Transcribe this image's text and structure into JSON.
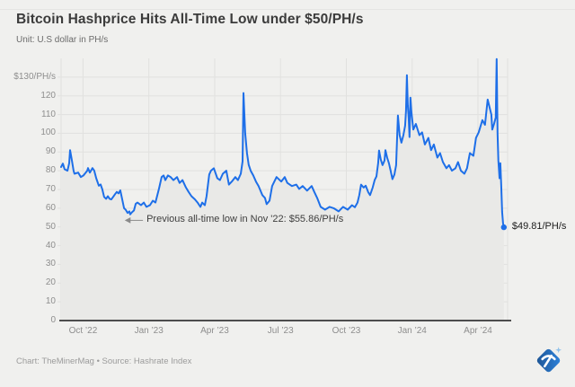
{
  "header": {
    "title": "Bitcoin Hashprice Hits All-Time Low under $50/PH/s",
    "subtitle": "Unit: U.S dollar in PH/s"
  },
  "footer": {
    "credit": "Chart: TheMinerMag • Source: Hashrate Index"
  },
  "logo": {
    "name": "theminermag-pickaxe-logo"
  },
  "colors": {
    "accent_line": "#1e6fe8",
    "area_fill": "#e9e9e7",
    "background": "#f0f0ee",
    "grid": "#e1e1df",
    "axis_line": "#4d4d4d",
    "annotation_arrow": "#8a8a8a",
    "logo_blue_dark": "#1d5493",
    "logo_blue_light": "#2e83dc",
    "logo_sparkle": "#8fc1ea"
  },
  "chart_data": {
    "type": "area",
    "title": "Bitcoin Hashprice Hits All-Time Low under $50/PH/s",
    "xlabel": "",
    "ylabel": "U.S dollar in PH/s",
    "x_unit": "months since Sep 2022",
    "xlim": [
      0,
      20.35
    ],
    "ylim": [
      0,
      140
    ],
    "grid": true,
    "legend": false,
    "x_ticks": [
      {
        "t": 1,
        "label": "Oct ’22"
      },
      {
        "t": 4,
        "label": "Jan ’23"
      },
      {
        "t": 7,
        "label": "Apr ’23"
      },
      {
        "t": 10,
        "label": "Jul ’23"
      },
      {
        "t": 13,
        "label": "Oct ’23"
      },
      {
        "t": 16,
        "label": "Jan ’24"
      },
      {
        "t": 19,
        "label": "Apr ’24"
      }
    ],
    "y_ticks": [
      {
        "v": 130,
        "label": "$130/PH/s"
      },
      {
        "v": 120,
        "label": "120"
      },
      {
        "v": 110,
        "label": "110"
      },
      {
        "v": 100,
        "label": "100"
      },
      {
        "v": 90,
        "label": "90"
      },
      {
        "v": 80,
        "label": "80"
      },
      {
        "v": 70,
        "label": "70"
      },
      {
        "v": 60,
        "label": "60"
      },
      {
        "v": 50,
        "label": "50"
      },
      {
        "v": 40,
        "label": "40"
      },
      {
        "v": 30,
        "label": "30"
      },
      {
        "v": 20,
        "label": "20"
      },
      {
        "v": 10,
        "label": "10"
      },
      {
        "v": 0,
        "label": "0"
      }
    ],
    "series": [
      {
        "name": "Bitcoin hashprice (USD per PH/s per day)",
        "points": [
          [
            0,
            82
          ],
          [
            0.08,
            83.8
          ],
          [
            0.16,
            80.8
          ],
          [
            0.29,
            80
          ],
          [
            0.37,
            84
          ],
          [
            0.41,
            91
          ],
          [
            0.49,
            85.6
          ],
          [
            0.57,
            80
          ],
          [
            0.61,
            78.4
          ],
          [
            0.78,
            79
          ],
          [
            0.9,
            76.6
          ],
          [
            1.02,
            77.5
          ],
          [
            1.19,
            80
          ],
          [
            1.23,
            81.4
          ],
          [
            1.31,
            79
          ],
          [
            1.43,
            81.4
          ],
          [
            1.51,
            80
          ],
          [
            1.6,
            76
          ],
          [
            1.72,
            72
          ],
          [
            1.8,
            72.7
          ],
          [
            1.88,
            70
          ],
          [
            1.96,
            66
          ],
          [
            2.05,
            65
          ],
          [
            2.13,
            66.4
          ],
          [
            2.21,
            65
          ],
          [
            2.29,
            64.7
          ],
          [
            2.37,
            66
          ],
          [
            2.46,
            67.5
          ],
          [
            2.54,
            68.7
          ],
          [
            2.62,
            67.9
          ],
          [
            2.7,
            69.5
          ],
          [
            2.78,
            65
          ],
          [
            2.87,
            60
          ],
          [
            2.95,
            59.1
          ],
          [
            3.03,
            57.5
          ],
          [
            3.11,
            58.3
          ],
          [
            3.15,
            56.7
          ],
          [
            3.23,
            57.8
          ],
          [
            3.32,
            58.8
          ],
          [
            3.4,
            62.3
          ],
          [
            3.48,
            63
          ],
          [
            3.64,
            61.6
          ],
          [
            3.77,
            63
          ],
          [
            3.89,
            60.7
          ],
          [
            4.05,
            61.6
          ],
          [
            4.18,
            64
          ],
          [
            4.3,
            63
          ],
          [
            4.46,
            70.3
          ],
          [
            4.58,
            76.6
          ],
          [
            4.67,
            77.5
          ],
          [
            4.75,
            75
          ],
          [
            4.87,
            77.5
          ],
          [
            4.99,
            76.6
          ],
          [
            5.12,
            75
          ],
          [
            5.28,
            76.6
          ],
          [
            5.4,
            73.5
          ],
          [
            5.53,
            75
          ],
          [
            5.69,
            71
          ],
          [
            5.81,
            68.7
          ],
          [
            5.94,
            66.4
          ],
          [
            6.1,
            64.7
          ],
          [
            6.22,
            63
          ],
          [
            6.35,
            60.7
          ],
          [
            6.43,
            63
          ],
          [
            6.55,
            61.6
          ],
          [
            6.63,
            66.4
          ],
          [
            6.75,
            78
          ],
          [
            6.83,
            80
          ],
          [
            6.96,
            81.3
          ],
          [
            7.12,
            76
          ],
          [
            7.24,
            75
          ],
          [
            7.37,
            78.4
          ],
          [
            7.53,
            80
          ],
          [
            7.65,
            72.6
          ],
          [
            7.78,
            74.2
          ],
          [
            7.94,
            76.6
          ],
          [
            8.06,
            75
          ],
          [
            8.19,
            78.4
          ],
          [
            8.27,
            85
          ],
          [
            8.31,
            121.5
          ],
          [
            8.39,
            100
          ],
          [
            8.47,
            89.4
          ],
          [
            8.55,
            83.2
          ],
          [
            8.64,
            80
          ],
          [
            8.76,
            77.5
          ],
          [
            8.88,
            74.2
          ],
          [
            9,
            71.8
          ],
          [
            9.17,
            67
          ],
          [
            9.29,
            65.5
          ],
          [
            9.37,
            62.2
          ],
          [
            9.5,
            64
          ],
          [
            9.62,
            71.8
          ],
          [
            9.82,
            76.6
          ],
          [
            10.03,
            74.2
          ],
          [
            10.19,
            76.6
          ],
          [
            10.31,
            73.5
          ],
          [
            10.52,
            71.8
          ],
          [
            10.72,
            72.6
          ],
          [
            10.85,
            70.3
          ],
          [
            11.01,
            71.8
          ],
          [
            11.21,
            69.4
          ],
          [
            11.42,
            71.8
          ],
          [
            11.54,
            68.7
          ],
          [
            11.67,
            65.5
          ],
          [
            11.83,
            60.7
          ],
          [
            12.03,
            59.2
          ],
          [
            12.24,
            60.7
          ],
          [
            12.44,
            59.9
          ],
          [
            12.65,
            58.3
          ],
          [
            12.85,
            60.7
          ],
          [
            13.06,
            59.2
          ],
          [
            13.26,
            61.6
          ],
          [
            13.39,
            60.5
          ],
          [
            13.51,
            63
          ],
          [
            13.59,
            67
          ],
          [
            13.67,
            72.6
          ],
          [
            13.79,
            71
          ],
          [
            13.88,
            72
          ],
          [
            14,
            68.5
          ],
          [
            14.08,
            67
          ],
          [
            14.2,
            71
          ],
          [
            14.29,
            75
          ],
          [
            14.37,
            77
          ],
          [
            14.45,
            84
          ],
          [
            14.49,
            90.8
          ],
          [
            14.57,
            86
          ],
          [
            14.65,
            83
          ],
          [
            14.74,
            85.5
          ],
          [
            14.78,
            91
          ],
          [
            14.86,
            87
          ],
          [
            14.94,
            84
          ],
          [
            15.02,
            80
          ],
          [
            15.1,
            75.5
          ],
          [
            15.19,
            78
          ],
          [
            15.27,
            83
          ],
          [
            15.35,
            109.5
          ],
          [
            15.43,
            99
          ],
          [
            15.51,
            95
          ],
          [
            15.6,
            99
          ],
          [
            15.68,
            104
          ],
          [
            15.72,
            112
          ],
          [
            15.76,
            131
          ],
          [
            15.8,
            115
          ],
          [
            15.84,
            108
          ],
          [
            15.88,
            98
          ],
          [
            15.92,
            119
          ],
          [
            15.96,
            112
          ],
          [
            16.05,
            102
          ],
          [
            16.17,
            105
          ],
          [
            16.33,
            99
          ],
          [
            16.45,
            100.5
          ],
          [
            16.58,
            94
          ],
          [
            16.74,
            97.5
          ],
          [
            16.86,
            91
          ],
          [
            16.99,
            94
          ],
          [
            17.15,
            87
          ],
          [
            17.27,
            89.4
          ],
          [
            17.4,
            84.6
          ],
          [
            17.56,
            81.3
          ],
          [
            17.68,
            83
          ],
          [
            17.81,
            80
          ],
          [
            17.97,
            81.3
          ],
          [
            18.09,
            84.6
          ],
          [
            18.22,
            80
          ],
          [
            18.38,
            78.4
          ],
          [
            18.5,
            81.3
          ],
          [
            18.63,
            89.4
          ],
          [
            18.79,
            88
          ],
          [
            18.91,
            97.5
          ],
          [
            19.03,
            100.5
          ],
          [
            19.2,
            107
          ],
          [
            19.32,
            104.5
          ],
          [
            19.44,
            118
          ],
          [
            19.61,
            110
          ],
          [
            19.65,
            102
          ],
          [
            19.73,
            105
          ],
          [
            19.81,
            108.5
          ],
          [
            19.85,
            139.6
          ],
          [
            19.89,
            100
          ],
          [
            19.93,
            85.5
          ],
          [
            19.98,
            76
          ],
          [
            20.02,
            84
          ],
          [
            20.06,
            72
          ],
          [
            20.1,
            58
          ],
          [
            20.14,
            52
          ],
          [
            20.18,
            49.81
          ]
        ]
      }
    ],
    "prev_low_annotation": {
      "text": "Previous all-time low in Nov '22: $55.86/PH/s",
      "tip_t": 2.9,
      "tip_v": 53.5,
      "tail_t": 3.73
    },
    "end_point": {
      "t": 20.18,
      "v": 49.81,
      "label": "$49.81/PH/s"
    }
  }
}
